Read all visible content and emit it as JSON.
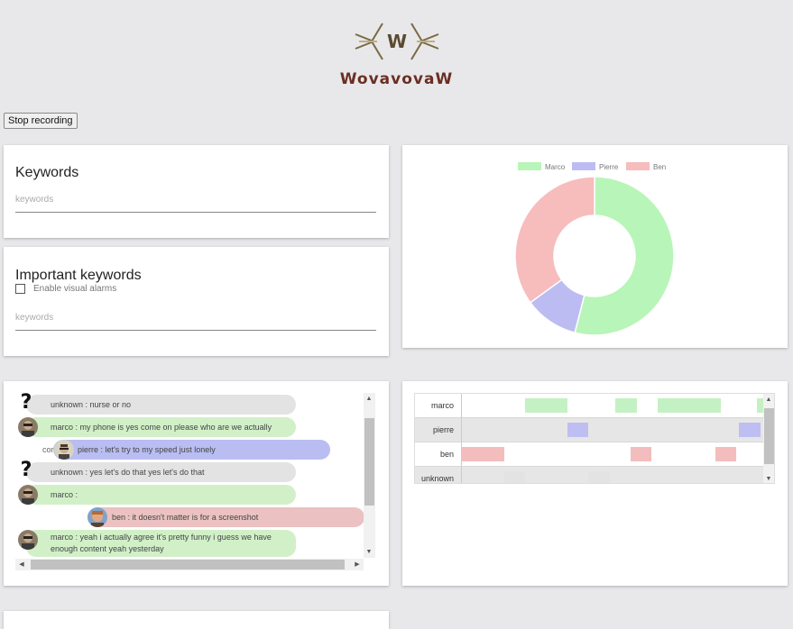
{
  "app": {
    "logo_text": "WovavovaW"
  },
  "toolbar": {
    "stop_label": "Stop recording"
  },
  "keywords_card": {
    "title": "Keywords",
    "placeholder": "keywords"
  },
  "important_card": {
    "title": "Important keywords",
    "checkbox_label": "Enable visual alarms",
    "placeholder": "keywords"
  },
  "colors": {
    "marco": "#c4f1c4",
    "pierre": "#bebef2",
    "ben": "#f4bdbd",
    "unknown": "#e3e3e3"
  },
  "chart_data": {
    "type": "pie",
    "donut": true,
    "legend_position": "top",
    "labels": [
      "Marco",
      "Pierre",
      "Ben"
    ],
    "values": [
      54,
      11,
      35
    ],
    "colors": [
      "#b8f5b8",
      "#bcbcf3",
      "#f7bcbc"
    ]
  },
  "chat": {
    "messages": [
      {
        "speaker": "unknown",
        "text": "unknown : nurse or no"
      },
      {
        "speaker": "marco",
        "text": "marco : my phone is yes come on please who are we actually"
      },
      {
        "speaker": "pierre",
        "text": "pierre : let's try to my speed just lonely",
        "partial_prefix": "cor"
      },
      {
        "speaker": "unknown",
        "text": "unknown : yes let's do that yes let's do that"
      },
      {
        "speaker": "marco",
        "text": "marco :"
      },
      {
        "speaker": "ben",
        "text": "ben : it doesn't matter is for a screenshot"
      },
      {
        "speaker": "marco",
        "text": "marco : yeah i actually agree it's pretty funny i guess we have enough content yeah yesterday"
      }
    ]
  },
  "timeline": {
    "rows": [
      {
        "label": "marco",
        "speaker": "marco",
        "segments": [
          [
            0.21,
            0.35
          ],
          [
            0.51,
            0.58
          ],
          [
            0.65,
            0.72
          ],
          [
            0.72,
            0.86
          ],
          [
            0.98,
            1.0
          ]
        ]
      },
      {
        "label": "pierre",
        "speaker": "pierre",
        "segments": [
          [
            0.35,
            0.42
          ],
          [
            0.92,
            0.99
          ]
        ]
      },
      {
        "label": "ben",
        "speaker": "ben",
        "segments": [
          [
            0.0,
            0.14
          ],
          [
            0.56,
            0.63
          ],
          [
            0.84,
            0.91
          ]
        ]
      },
      {
        "label": "unknown",
        "speaker": "unknown",
        "segments": [
          [
            0.14,
            0.21
          ],
          [
            0.42,
            0.49
          ]
        ]
      }
    ]
  }
}
